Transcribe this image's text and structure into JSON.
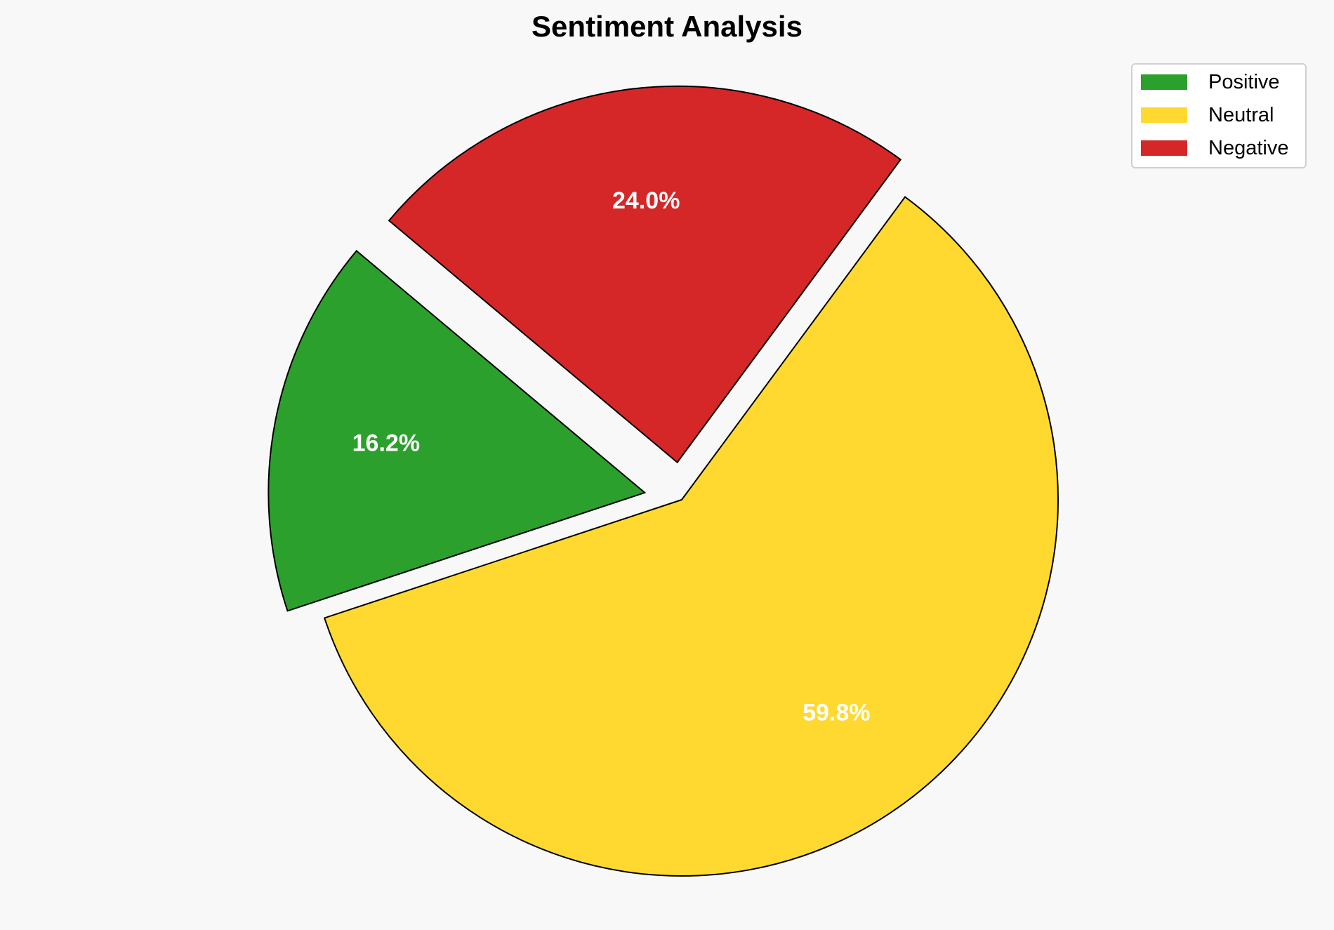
{
  "chart_data": {
    "type": "pie",
    "title": "Sentiment Analysis",
    "categories": [
      "Positive",
      "Neutral",
      "Negative"
    ],
    "values": [
      16.2,
      59.8,
      24.0
    ],
    "labels": [
      "16.2%",
      "59.8%",
      "24.0%"
    ],
    "colors": [
      "#2ca02c",
      "#ffd92f",
      "#d62728"
    ],
    "edgecolor": "#000000",
    "explode": [
      0.1,
      0,
      0.1
    ],
    "startangle": 140,
    "direction": "counterclockwise",
    "legend": {
      "placement": "top-right",
      "entries": [
        "Positive",
        "Neutral",
        "Negative"
      ]
    }
  }
}
